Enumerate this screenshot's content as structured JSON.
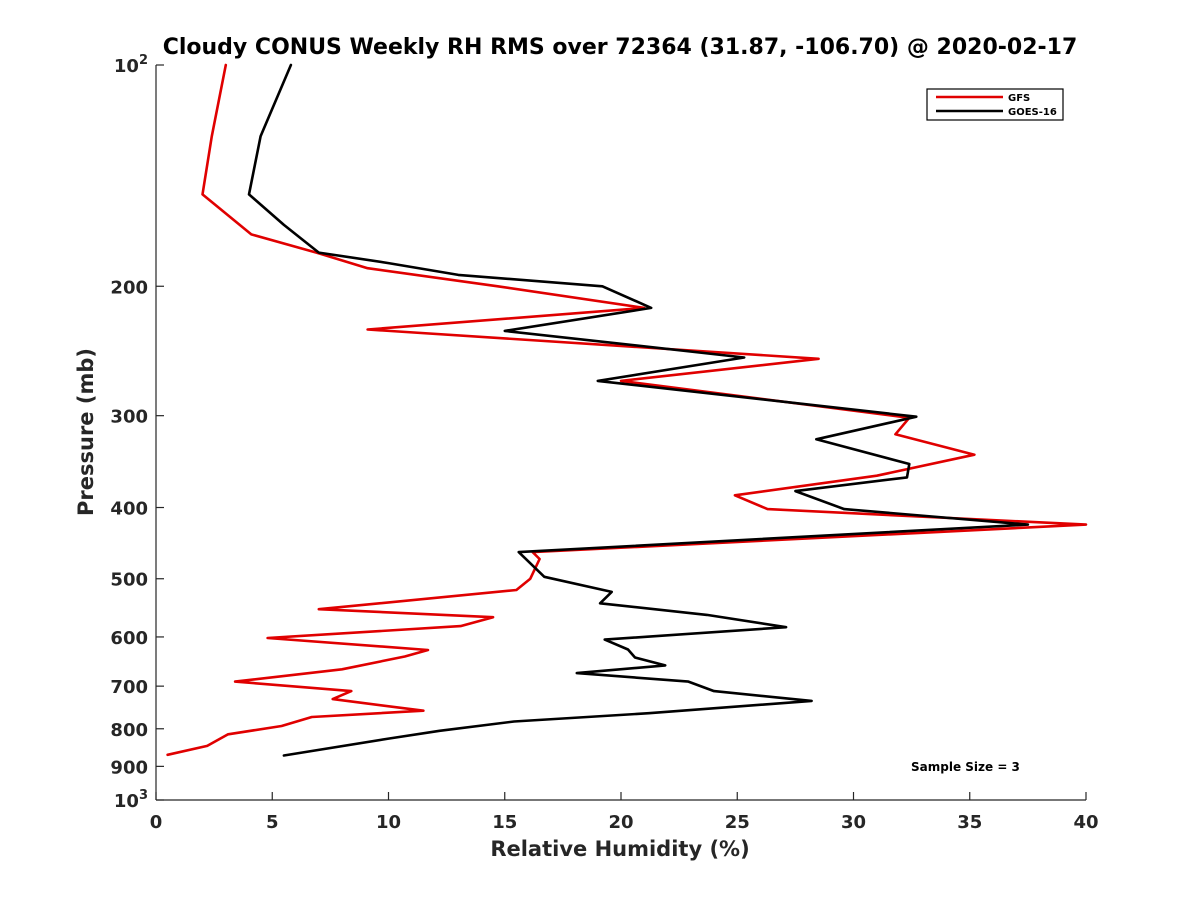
{
  "chart_data": {
    "type": "line",
    "title": "Cloudy CONUS Weekly RH RMS over 72364 (31.87, -106.70) @ 2020-02-17",
    "xlabel": "Relative Humidity (%)",
    "ylabel": "Pressure (mb)",
    "xlim": [
      0,
      40
    ],
    "ylim": [
      100,
      1000
    ],
    "y_scale": "log",
    "y_reversed": true,
    "x_ticks": [
      "0",
      "5",
      "10",
      "15",
      "20",
      "25",
      "30",
      "35",
      "40"
    ],
    "y_ticks": [
      {
        "value": 100,
        "base": "10",
        "exp": "2"
      },
      {
        "value": 200,
        "label": "200"
      },
      {
        "value": 300,
        "label": "300"
      },
      {
        "value": 400,
        "label": "400"
      },
      {
        "value": 500,
        "label": "500"
      },
      {
        "value": 600,
        "label": "600"
      },
      {
        "value": 700,
        "label": "700"
      },
      {
        "value": 800,
        "label": "800"
      },
      {
        "value": 900,
        "label": "900"
      },
      {
        "value": 1000,
        "base": "10",
        "exp": "3"
      }
    ],
    "legend_position": "top-right",
    "annotation": "Sample Size = 3",
    "series": [
      {
        "name": "GFS",
        "color": "#e00000",
        "points": [
          [
            3.0,
            100
          ],
          [
            2.4,
            125
          ],
          [
            2.0,
            150
          ],
          [
            4.1,
            170
          ],
          [
            6.9,
            180
          ],
          [
            9.1,
            189
          ],
          [
            14.7,
            200
          ],
          [
            21.0,
            214
          ],
          [
            9.1,
            229
          ],
          [
            28.5,
            251
          ],
          [
            20.0,
            269
          ],
          [
            32.4,
            302
          ],
          [
            31.8,
            318
          ],
          [
            35.2,
            339
          ],
          [
            31.0,
            362
          ],
          [
            24.9,
            385
          ],
          [
            26.3,
            402
          ],
          [
            40.0,
            422
          ],
          [
            16.2,
            460
          ],
          [
            16.5,
            470
          ],
          [
            16.1,
            500
          ],
          [
            15.5,
            518
          ],
          [
            7.0,
            550
          ],
          [
            14.5,
            564
          ],
          [
            13.1,
            580
          ],
          [
            4.8,
            602
          ],
          [
            11.7,
            625
          ],
          [
            10.7,
            638
          ],
          [
            8.0,
            664
          ],
          [
            3.4,
            690
          ],
          [
            8.4,
            711
          ],
          [
            7.6,
            729
          ],
          [
            11.5,
            756
          ],
          [
            6.7,
            771
          ],
          [
            5.4,
            793
          ],
          [
            3.1,
            814
          ],
          [
            2.2,
            844
          ],
          [
            0.5,
            868
          ]
        ]
      },
      {
        "name": "GOES-16",
        "color": "#000000",
        "points": [
          [
            5.8,
            100
          ],
          [
            4.5,
            125
          ],
          [
            4.0,
            150
          ],
          [
            5.5,
            165
          ],
          [
            7.0,
            180
          ],
          [
            10.0,
            186
          ],
          [
            13.0,
            193
          ],
          [
            19.2,
            200
          ],
          [
            21.3,
            214
          ],
          [
            15.0,
            230
          ],
          [
            25.3,
            250
          ],
          [
            19.0,
            269
          ],
          [
            32.7,
            301
          ],
          [
            28.4,
            323
          ],
          [
            32.4,
            349
          ],
          [
            32.3,
            364
          ],
          [
            27.5,
            380
          ],
          [
            29.6,
            402
          ],
          [
            37.5,
            422
          ],
          [
            15.6,
            460
          ],
          [
            16.7,
            497
          ],
          [
            19.6,
            521
          ],
          [
            19.1,
            540
          ],
          [
            23.7,
            560
          ],
          [
            27.1,
            582
          ],
          [
            19.3,
            605
          ],
          [
            20.3,
            624
          ],
          [
            20.6,
            640
          ],
          [
            21.9,
            656
          ],
          [
            18.1,
            672
          ],
          [
            22.9,
            690
          ],
          [
            24.0,
            711
          ],
          [
            28.2,
            733
          ],
          [
            21.2,
            762
          ],
          [
            15.4,
            782
          ],
          [
            12.2,
            805
          ],
          [
            10.0,
            825
          ],
          [
            5.5,
            870
          ]
        ]
      }
    ]
  }
}
